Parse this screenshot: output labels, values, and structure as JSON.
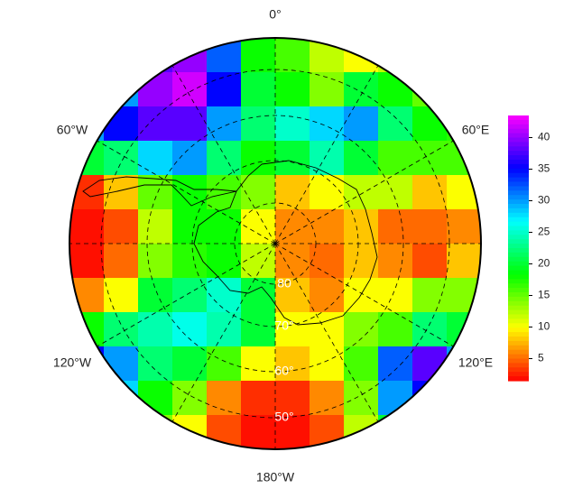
{
  "map": {
    "type": "heatmap",
    "grid": [
      [
        null,
        null,
        38,
        40,
        32,
        18,
        16,
        12,
        10,
        12,
        null,
        null
      ],
      [
        null,
        30,
        40,
        42,
        35,
        20,
        18,
        14,
        20,
        18,
        15,
        null
      ],
      [
        30,
        35,
        38,
        38,
        30,
        22,
        25,
        28,
        30,
        22,
        18,
        17
      ],
      [
        20,
        22,
        28,
        30,
        22,
        18,
        20,
        24,
        20,
        16,
        16,
        16
      ],
      [
        3,
        8,
        15,
        18,
        16,
        14,
        8,
        10,
        12,
        12,
        8,
        10
      ],
      [
        2,
        4,
        12,
        18,
        18,
        10,
        6,
        6,
        8,
        5,
        5,
        6
      ],
      [
        2,
        5,
        14,
        17,
        18,
        12,
        6,
        5,
        8,
        6,
        4,
        8
      ],
      [
        6,
        10,
        20,
        22,
        25,
        20,
        8,
        6,
        10,
        10,
        14,
        14
      ],
      [
        18,
        22,
        24,
        26,
        24,
        20,
        10,
        10,
        14,
        16,
        22,
        20
      ],
      [
        35,
        30,
        22,
        20,
        16,
        10,
        8,
        10,
        16,
        32,
        38,
        30
      ],
      [
        null,
        28,
        18,
        14,
        6,
        3,
        3,
        6,
        14,
        30,
        35,
        null
      ],
      [
        null,
        null,
        14,
        10,
        4,
        2,
        2,
        4,
        12,
        20,
        null,
        null
      ]
    ],
    "zlim": [
      1.5,
      43.5
    ],
    "colorbar_ticks": [
      5,
      10,
      15,
      20,
      25,
      30,
      35,
      40
    ],
    "meridian_labels": [
      "0°",
      "60°E",
      "120°E",
      "180°W",
      "120°W",
      "60°W"
    ],
    "parallel_labels": [
      "50°",
      "60°",
      "70°",
      "80"
    ]
  }
}
